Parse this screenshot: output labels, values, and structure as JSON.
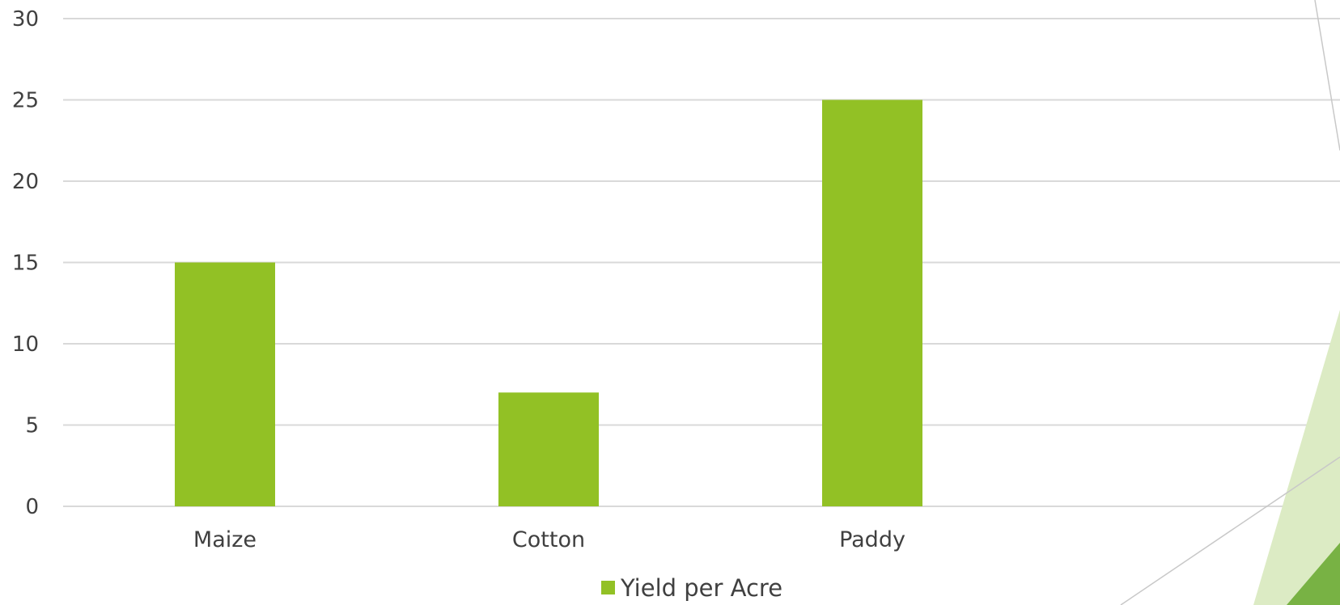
{
  "chart_data": {
    "type": "bar",
    "title": "",
    "xlabel": "",
    "ylabel": "",
    "categories": [
      "Maize",
      "Cotton",
      "Paddy",
      ""
    ],
    "series": [
      {
        "name": "Yield per Acre",
        "values": [
          15,
          7,
          25,
          null
        ]
      }
    ],
    "ylim": [
      0,
      30
    ],
    "yticks": [
      0,
      5,
      10,
      15,
      20,
      25,
      30
    ],
    "grid": true,
    "legend": "bottom"
  },
  "colors": {
    "bar": "#92c125",
    "grid": "#d9d9d9",
    "text": "#404040",
    "decor_light": "#dcebc4",
    "decor_dark": "#78b244",
    "decor_line": "#c8c8c8"
  }
}
